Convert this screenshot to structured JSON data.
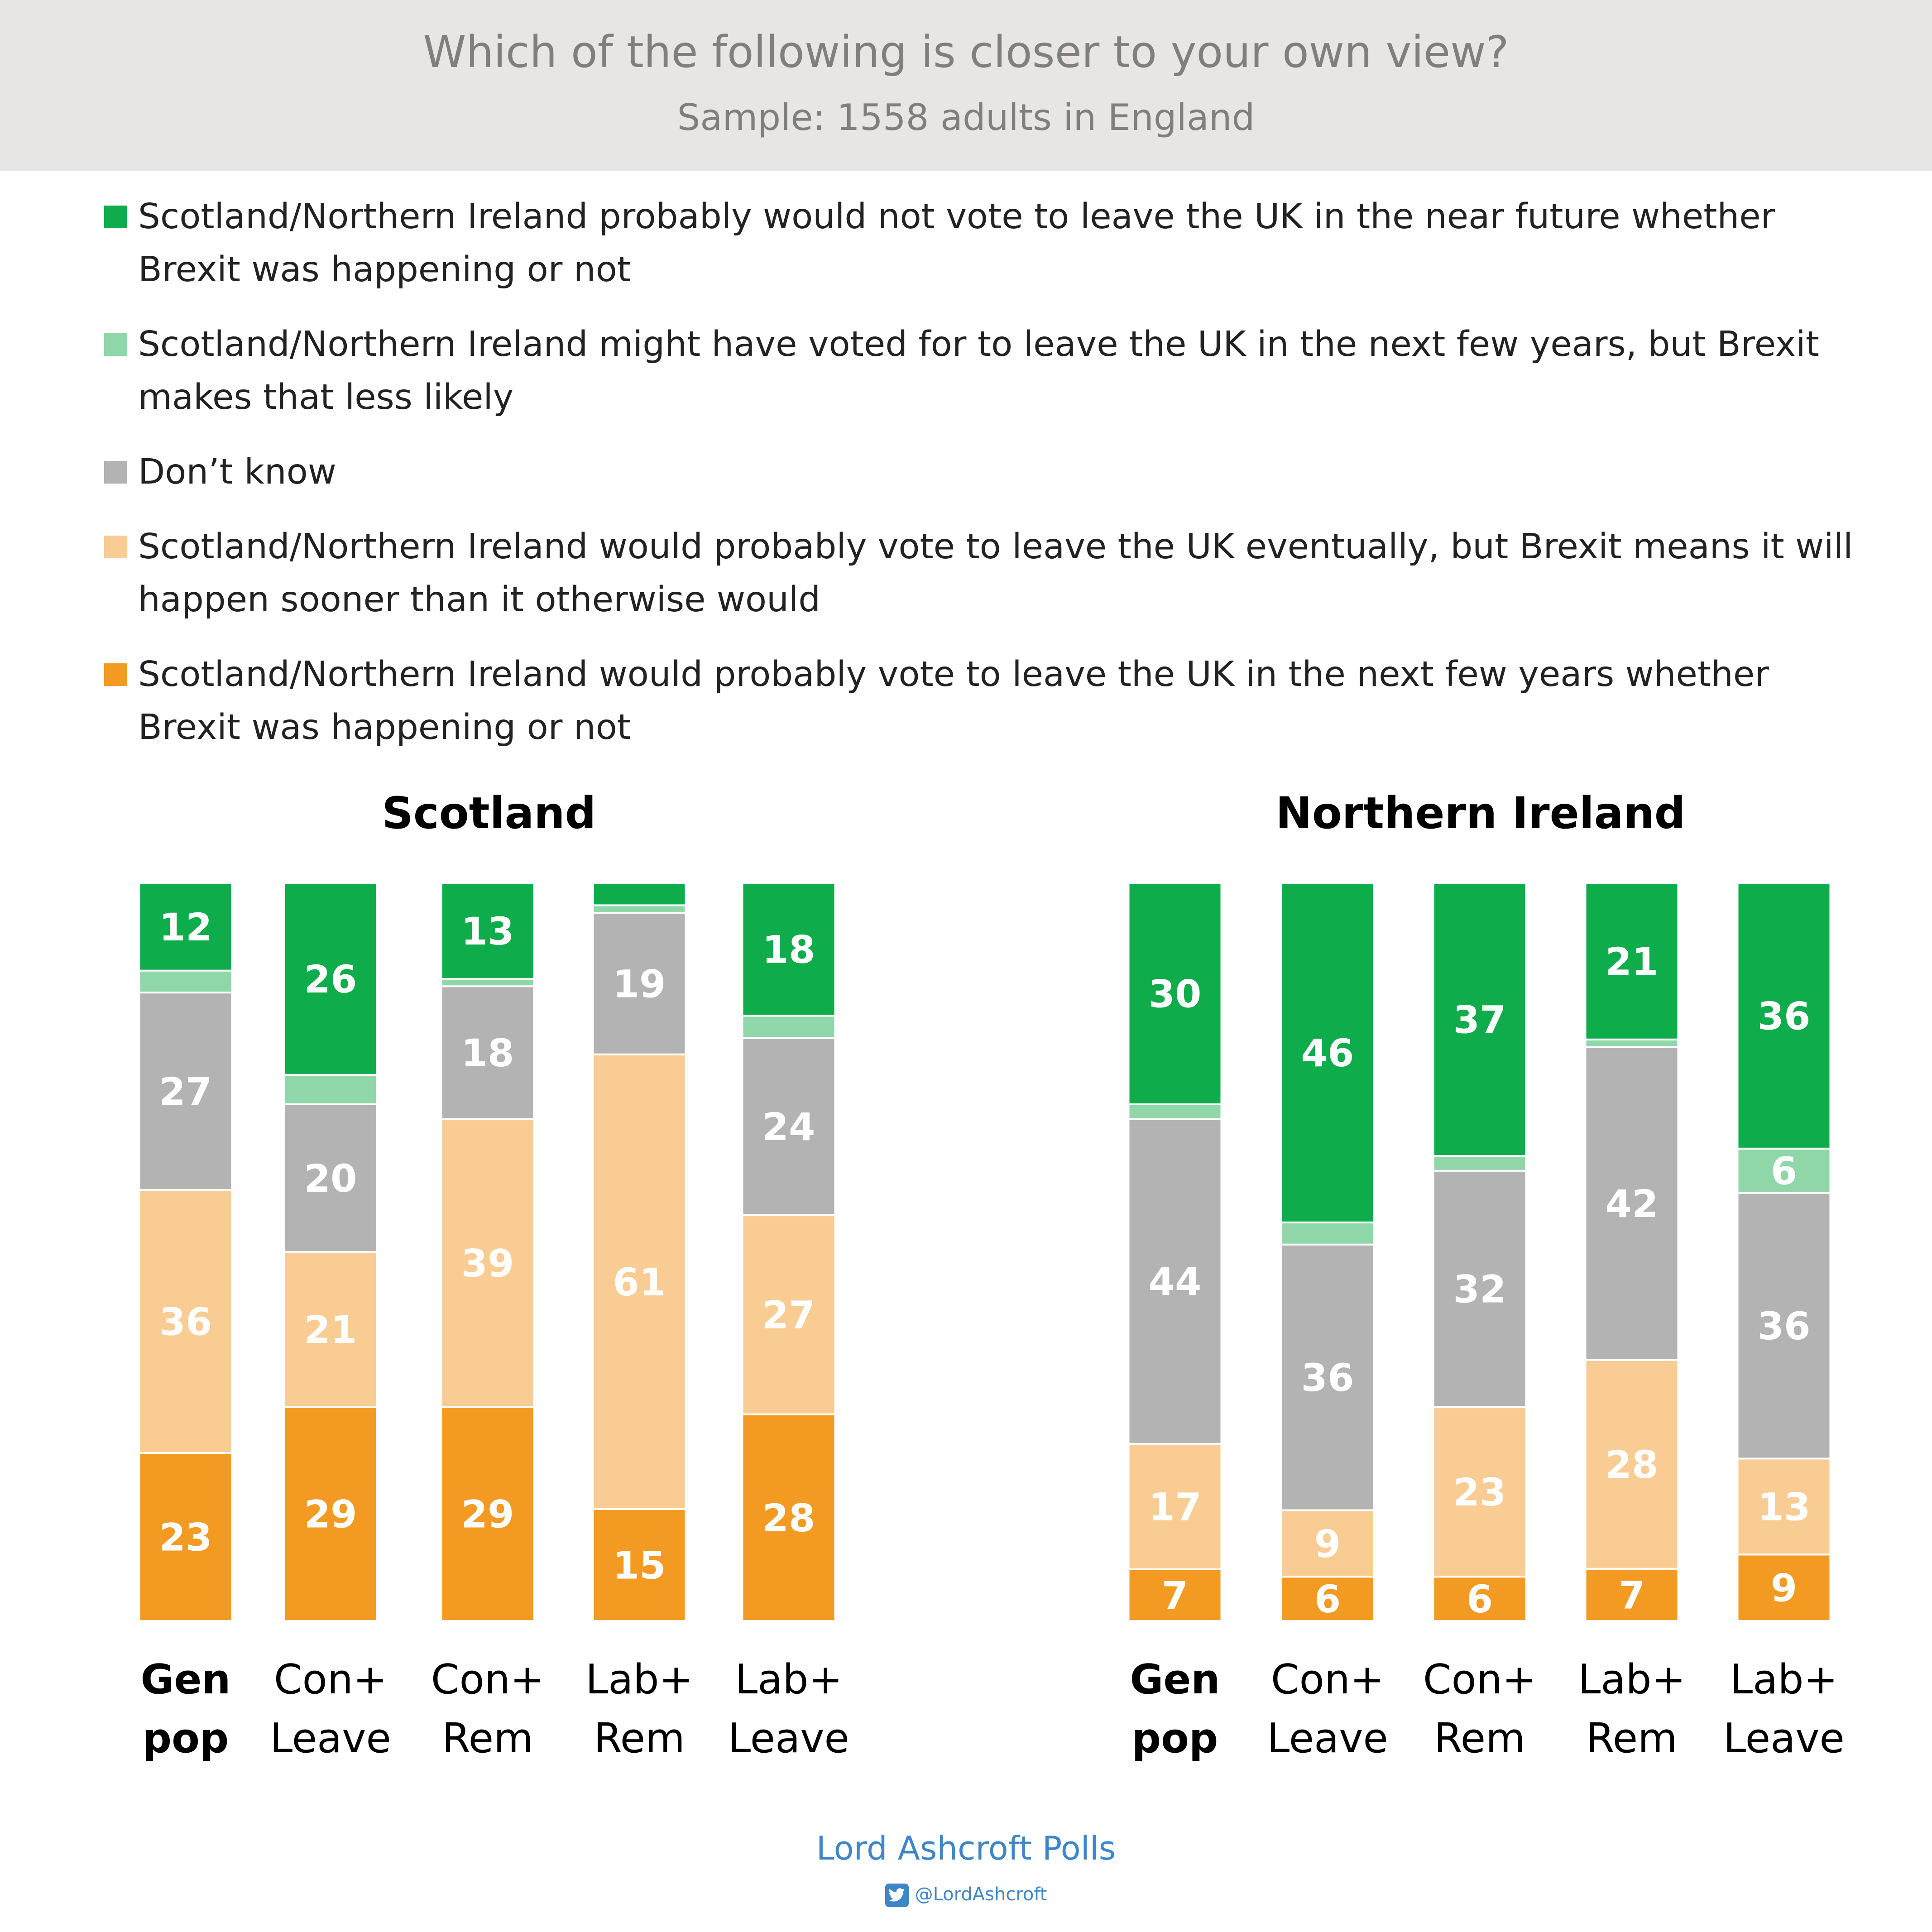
{
  "header": {
    "title": "Which of the following is closer to your own view?",
    "subtitle": "Sample: 1558 adults in England"
  },
  "legend": [
    {
      "label": "Scotland/Northern Ireland probably would not vote to leave the UK in the near future whether Brexit was happening or not",
      "color": "#0fac4b"
    },
    {
      "label": "Scotland/Northern Ireland might have voted for to leave the UK in the next few years, but Brexit makes that less likely",
      "color": "#8fd6a8"
    },
    {
      "label": "Don’t know",
      "color": "#b3b3b3"
    },
    {
      "label": "Scotland/Northern Ireland would probably vote to leave the UK eventually, but Brexit means it will happen sooner than it otherwise would",
      "color": "#f8cc93"
    },
    {
      "label": "Scotland/Northern Ireland would probably vote to leave the UK in the next few years whether Brexit was happening or not",
      "color": "#f39a23"
    }
  ],
  "chart_data": [
    {
      "type": "bar",
      "stacked": true,
      "title": "Scotland",
      "categories": [
        [
          "Gen",
          "pop"
        ],
        [
          "Con+",
          "Leave"
        ],
        [
          "Con+",
          "Rem"
        ],
        [
          "Lab+",
          "Rem"
        ],
        [
          "Lab+",
          "Leave"
        ]
      ],
      "bold_category": 0,
      "series": [
        {
          "name": "Scotland/Northern Ireland would probably vote to leave the UK in the next few years whether Brexit was happening or not",
          "values": [
            23,
            29,
            29,
            15,
            28
          ],
          "color": "#f39a23"
        },
        {
          "name": "Scotland/Northern Ireland would probably vote to leave the UK eventually, but Brexit means it will happen sooner than it otherwise would",
          "values": [
            36,
            21,
            39,
            61,
            27
          ],
          "color": "#f8cc93"
        },
        {
          "name": "Don’t know",
          "values": [
            27,
            20,
            18,
            19,
            24
          ],
          "color": "#b3b3b3"
        },
        {
          "name": "Scotland/Northern Ireland might have voted for to leave the UK in the next few years, but Brexit makes that less likely",
          "values": [
            3,
            4,
            1,
            1,
            3
          ],
          "color": "#8fd6a8"
        },
        {
          "name": "Scotland/Northern Ireland probably would not vote to leave the UK in the near future whether Brexit was happening or not",
          "values": [
            12,
            26,
            13,
            3,
            18
          ],
          "color": "#0fac4b"
        }
      ],
      "labeled_min": 5
    },
    {
      "type": "bar",
      "stacked": true,
      "title": "Northern Ireland",
      "categories": [
        [
          "Gen",
          "pop"
        ],
        [
          "Con+",
          "Leave"
        ],
        [
          "Con+",
          "Rem"
        ],
        [
          "Lab+",
          "Rem"
        ],
        [
          "Lab+",
          "Leave"
        ]
      ],
      "bold_category": 0,
      "series": [
        {
          "name": "Scotland/Northern Ireland would probably vote to leave the UK in the next few years whether Brexit was happening or not",
          "values": [
            7,
            6,
            6,
            7,
            9
          ],
          "color": "#f39a23"
        },
        {
          "name": "Scotland/Northern Ireland would probably vote to leave the UK eventually, but Brexit means it will happen sooner than it otherwise would",
          "values": [
            17,
            9,
            23,
            28,
            13
          ],
          "color": "#f8cc93"
        },
        {
          "name": "Don’t know",
          "values": [
            44,
            36,
            32,
            42,
            36
          ],
          "color": "#b3b3b3"
        },
        {
          "name": "Scotland/Northern Ireland might have voted for to leave the UK in the next few years, but Brexit makes that less likely",
          "values": [
            2,
            3,
            2,
            1,
            6
          ],
          "color": "#8fd6a8"
        },
        {
          "name": "Scotland/Northern Ireland probably would not vote to leave the UK in the near future whether Brexit was happening or not",
          "values": [
            30,
            46,
            37,
            21,
            36
          ],
          "color": "#0fac4b"
        }
      ],
      "labeled_min": 5
    }
  ],
  "footer": {
    "brand": "Lord Ashcroft Polls",
    "handle": "@LordAshcroft",
    "icon": "twitter-icon"
  }
}
